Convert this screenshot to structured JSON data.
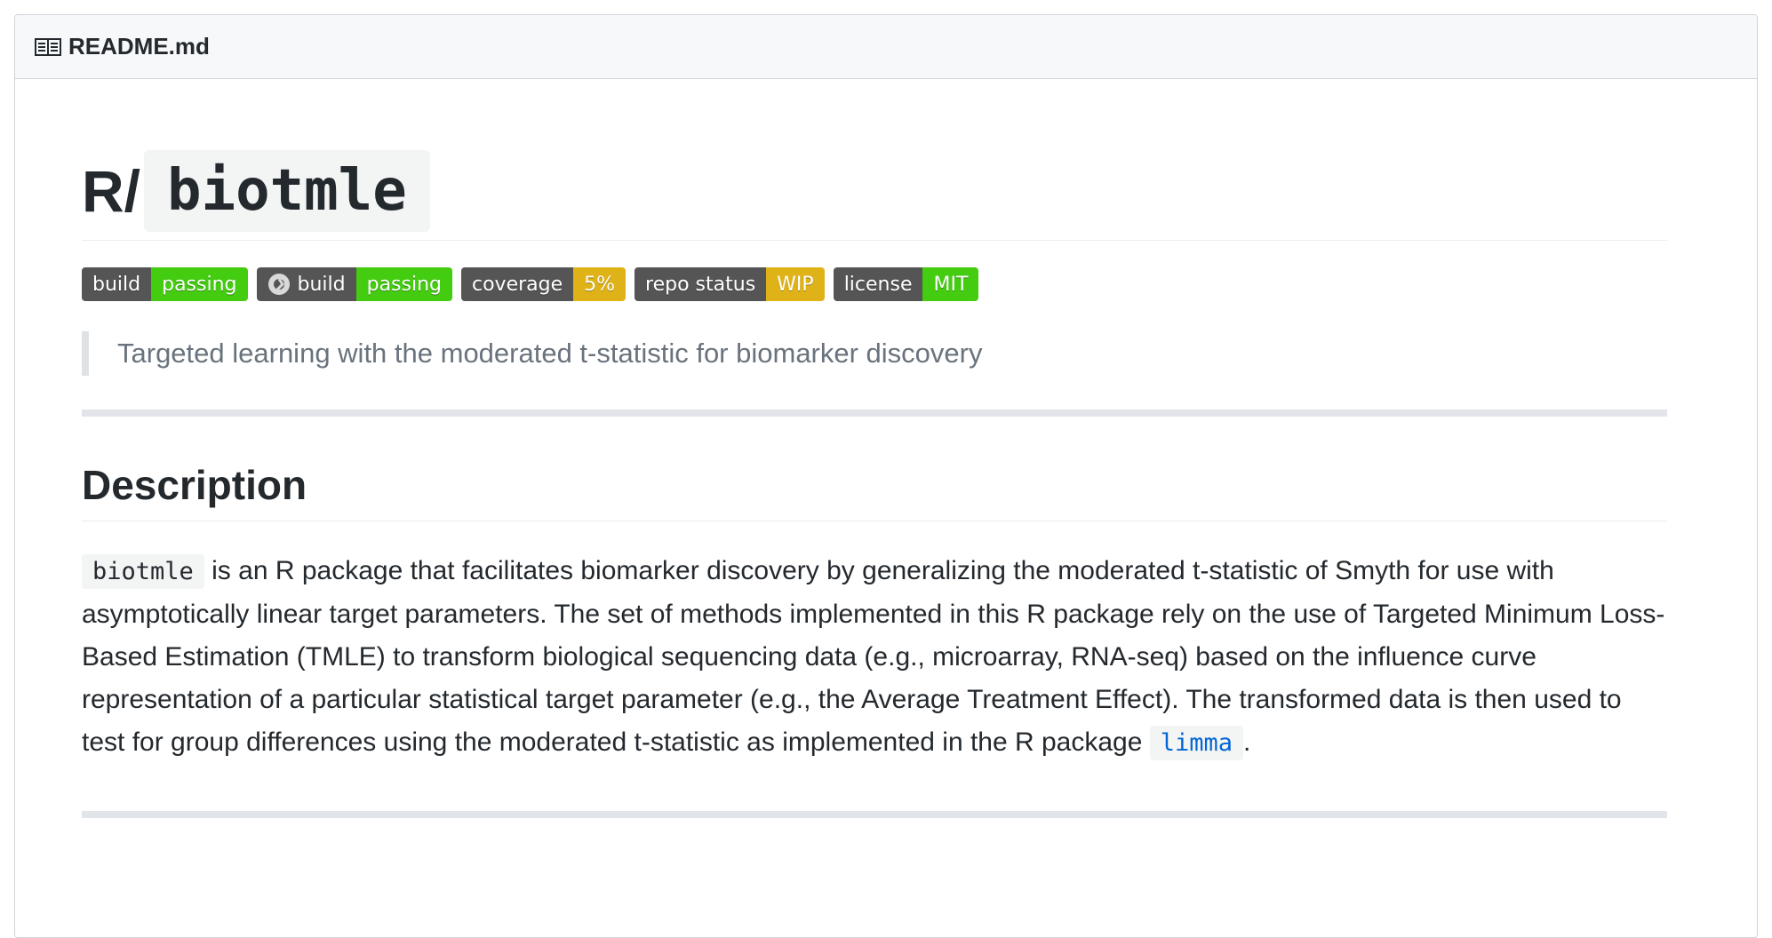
{
  "readme": {
    "filename": "README.md",
    "icon": "book-icon"
  },
  "title": {
    "prefix": "R/",
    "code": "biotmle"
  },
  "badges": [
    {
      "left": "build",
      "right": "passing",
      "color": "#4c1",
      "icon": null
    },
    {
      "left": "build",
      "right": "passing",
      "color": "#4c1",
      "icon": "appveyor-icon"
    },
    {
      "left": "coverage",
      "right": "5%",
      "color": "#dfb317",
      "icon": null
    },
    {
      "left": "repo status",
      "right": "WIP",
      "color": "#dfb317",
      "icon": null
    },
    {
      "left": "license",
      "right": "MIT",
      "color": "#4c1",
      "icon": null
    }
  ],
  "tagline": "Targeted learning with the moderated t-statistic for biomarker discovery",
  "description": {
    "heading": "Description",
    "code_pkg": "biotmle",
    "text_1": " is an R package that facilitates biomarker discovery by generalizing the moderated t-statistic of Smyth for use with asymptotically linear target parameters. The set of methods implemented in this R package rely on the use of Targeted Minimum Loss-Based Estimation (TMLE) to transform biological sequencing data (e.g., microarray, RNA-seq) based on the influence curve representation of a particular statistical target parameter (e.g., the Average Treatment Effect). The transformed data is then used to test for group differences using the moderated t-statistic as implemented in the R package ",
    "link_code": "limma",
    "text_2": "."
  },
  "colors": {
    "link": "#0366d6",
    "badge_green": "#4c1",
    "badge_yellow": "#dfb317",
    "badge_gray": "#555555"
  }
}
